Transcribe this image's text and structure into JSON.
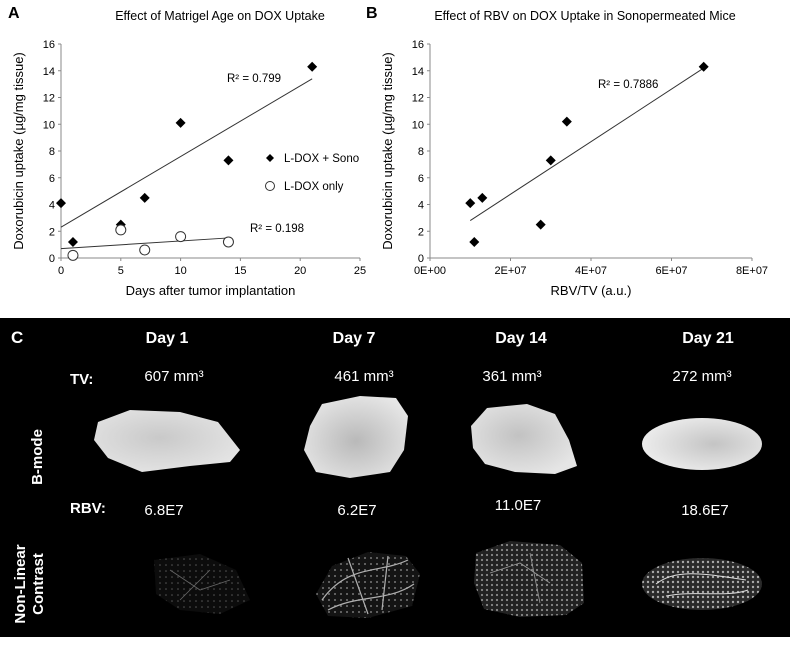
{
  "chart_data": [
    {
      "panel": "A",
      "type": "scatter",
      "title": "Effect of Matrigel Age on DOX Uptake",
      "xlabel": "Days after tumor implantation",
      "ylabel": "Doxorubicin uptake (µg/mg tissue)",
      "xlim": [
        0,
        25
      ],
      "ylim": [
        0,
        16
      ],
      "xticks": [
        0,
        5,
        10,
        15,
        20,
        25
      ],
      "yticks": [
        0,
        2,
        4,
        6,
        8,
        10,
        12,
        14,
        16
      ],
      "legend_position": "right",
      "series": [
        {
          "name": "L-DOX + Sono",
          "marker": "filled-diamond",
          "points": [
            [
              0,
              4.1
            ],
            [
              1,
              1.2
            ],
            [
              5,
              2.5
            ],
            [
              7,
              4.5
            ],
            [
              10,
              10.1
            ],
            [
              14,
              7.3
            ],
            [
              21,
              14.3
            ]
          ],
          "trendline": [
            [
              0,
              2.3
            ],
            [
              21,
              13.4
            ]
          ],
          "r2_label": "R² = 0.799"
        },
        {
          "name": "L-DOX only",
          "marker": "open-circle",
          "points": [
            [
              1,
              0.2
            ],
            [
              5,
              2.1
            ],
            [
              7,
              0.6
            ],
            [
              10,
              1.6
            ],
            [
              14,
              1.2
            ]
          ],
          "trendline": [
            [
              0,
              0.7
            ],
            [
              14,
              1.5
            ]
          ],
          "r2_label": "R² = 0.198"
        }
      ]
    },
    {
      "panel": "B",
      "type": "scatter",
      "title": "Effect of RBV on DOX Uptake in Sonopermeated Mice",
      "xlabel": "RBV/TV (a.u.)",
      "ylabel": "Doxorubicin uptake (µg/mg tissue)",
      "xlim": [
        0,
        80000000
      ],
      "ylim": [
        0,
        16
      ],
      "xtick_labels": [
        "0E+00",
        "2E+07",
        "4E+07",
        "6E+07",
        "8E+07"
      ],
      "yticks": [
        0,
        2,
        4,
        6,
        8,
        10,
        12,
        14,
        16
      ],
      "series": [
        {
          "name": "L-DOX + Sono",
          "marker": "filled-diamond",
          "points": [
            [
              10000000,
              4.1
            ],
            [
              11000000,
              1.2
            ],
            [
              13000000,
              4.5
            ],
            [
              27500000,
              2.5
            ],
            [
              30000000,
              7.3
            ],
            [
              34000000,
              10.2
            ],
            [
              68000000,
              14.3
            ]
          ],
          "trendline": [
            [
              10000000,
              2.8
            ],
            [
              68000000,
              14.2
            ]
          ],
          "r2_label": "R² = 0.7886"
        }
      ]
    }
  ],
  "panel_c": {
    "letter": "C",
    "days": [
      "Day 1",
      "Day 7",
      "Day 14",
      "Day 21"
    ],
    "tv_label": "TV:",
    "tv_values": [
      "607 mm³",
      "461 mm³",
      "361 mm³",
      "272 mm³"
    ],
    "rbv_label": "RBV:",
    "rbv_values": [
      "6.8E7",
      "6.2E7",
      "11.0E7",
      "18.6E7"
    ],
    "row_labels": [
      "B-mode",
      "Non-Linear Contrast"
    ]
  }
}
